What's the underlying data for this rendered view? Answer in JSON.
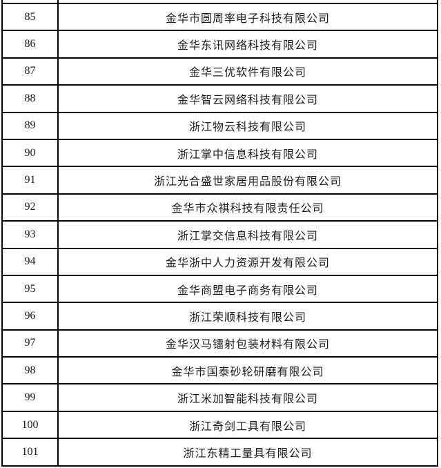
{
  "table": {
    "column_semantics": [
      "rank_number",
      "company_name"
    ],
    "rows": [
      {
        "index": "85",
        "name": "金华市圆周率电子科技有限公司"
      },
      {
        "index": "86",
        "name": "金华东讯网络科技有限公司"
      },
      {
        "index": "87",
        "name": "金华三优软件有限公司"
      },
      {
        "index": "88",
        "name": "金华智云网络科技有限公司"
      },
      {
        "index": "89",
        "name": "浙江物云科技有限公司"
      },
      {
        "index": "90",
        "name": "浙江掌中信息科技有限公司"
      },
      {
        "index": "91",
        "name": "浙江光合盛世家居用品股份有限公司"
      },
      {
        "index": "92",
        "name": "金华市众祺科技有限责任公司"
      },
      {
        "index": "93",
        "name": "浙江掌交信息科技有限公司"
      },
      {
        "index": "94",
        "name": "金华浙中人力资源开发有限公司"
      },
      {
        "index": "95",
        "name": "金华商盟电子商务有限公司"
      },
      {
        "index": "96",
        "name": "浙江荣顺科技有限公司"
      },
      {
        "index": "97",
        "name": "金华汉马镭射包装材料有限公司"
      },
      {
        "index": "98",
        "name": "金华市国泰砂轮研磨有限公司"
      },
      {
        "index": "99",
        "name": "浙江米加智能科技有限公司"
      },
      {
        "index": "100",
        "name": "浙江奇剑工具有限公司"
      },
      {
        "index": "101",
        "name": "浙江东精工量具有限公司"
      }
    ],
    "style": {
      "border_color": "#000000",
      "text_color": "#1c1c1c",
      "background_color": "#ffffff"
    }
  }
}
